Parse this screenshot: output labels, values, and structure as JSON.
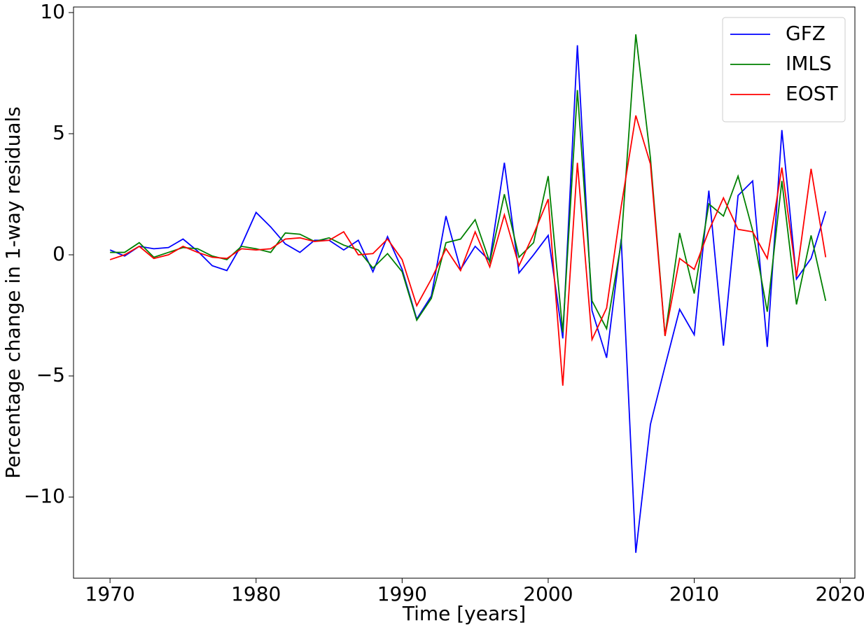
{
  "chart_data": {
    "type": "line",
    "x_label": "Time [years]",
    "y_label": "Percentage change in 1-way residuals",
    "x": [
      1970,
      1971,
      1972,
      1973,
      1974,
      1975,
      1976,
      1977,
      1978,
      1979,
      1980,
      1981,
      1982,
      1983,
      1984,
      1985,
      1986,
      1987,
      1988,
      1989,
      1990,
      1991,
      1992,
      1993,
      1994,
      1995,
      1996,
      1997,
      1998,
      1999,
      2000,
      2001,
      2002,
      2003,
      2004,
      2005,
      2006,
      2007,
      2008,
      2009,
      2010,
      2011,
      2012,
      2013,
      2014,
      2015,
      2016,
      2017,
      2018,
      2019
    ],
    "series": [
      {
        "name": "GFZ",
        "color": "#0000ff",
        "values": [
          0.2,
          -0.05,
          0.35,
          0.25,
          0.3,
          0.65,
          0.15,
          -0.45,
          -0.65,
          0.4,
          1.75,
          1.15,
          0.45,
          0.1,
          0.6,
          0.6,
          0.2,
          0.6,
          -0.7,
          0.75,
          -0.6,
          -2.65,
          -1.7,
          1.6,
          -0.6,
          0.35,
          -0.25,
          3.8,
          -0.75,
          0.0,
          0.8,
          -3.45,
          8.65,
          -2.3,
          -4.25,
          0.65,
          -12.3,
          -7.0,
          -4.6,
          -2.25,
          -3.3,
          2.65,
          -3.75,
          2.45,
          3.05,
          -3.8,
          5.15,
          -1.0,
          -0.15,
          1.8
        ]
      },
      {
        "name": "IMLS",
        "color": "#008000",
        "values": [
          0.1,
          0.1,
          0.5,
          -0.1,
          0.1,
          0.3,
          0.25,
          -0.05,
          -0.2,
          0.35,
          0.25,
          0.1,
          0.9,
          0.85,
          0.55,
          0.7,
          0.4,
          0.2,
          -0.55,
          0.05,
          -0.7,
          -2.7,
          -1.8,
          0.5,
          0.65,
          1.45,
          -0.3,
          2.5,
          -0.1,
          0.5,
          3.25,
          -3.2,
          6.8,
          -1.9,
          -3.05,
          0.5,
          9.1,
          4.0,
          -3.35,
          0.9,
          -1.6,
          2.1,
          1.6,
          3.25,
          1.0,
          -2.35,
          3.05,
          -2.05,
          0.8,
          -1.9
        ]
      },
      {
        "name": "EOST",
        "color": "#ff0000",
        "values": [
          -0.2,
          0.0,
          0.35,
          -0.15,
          0.0,
          0.35,
          0.1,
          -0.1,
          -0.15,
          0.25,
          0.2,
          0.25,
          0.65,
          0.7,
          0.55,
          0.6,
          0.95,
          0.0,
          0.05,
          0.65,
          -0.2,
          -2.1,
          -1.0,
          0.25,
          -0.65,
          0.95,
          -0.5,
          1.65,
          -0.45,
          0.85,
          2.3,
          -5.4,
          3.8,
          -3.5,
          -2.2,
          2.0,
          5.75,
          3.75,
          -3.35,
          -0.15,
          -0.6,
          1.0,
          2.35,
          1.05,
          0.95,
          -0.15,
          3.6,
          -0.9,
          3.55,
          -0.1
        ]
      }
    ],
    "xlim": [
      1967.5,
      2021.0
    ],
    "ylim": [
      -13.35,
      10.23
    ],
    "xticks": [
      1970,
      1980,
      1990,
      2000,
      2010,
      2020
    ],
    "yticks": [
      {
        "value": -10,
        "label": "−10"
      },
      {
        "value": -5,
        "label": "−5"
      },
      0,
      5,
      10
    ],
    "legend": "upper right",
    "grid": false
  }
}
